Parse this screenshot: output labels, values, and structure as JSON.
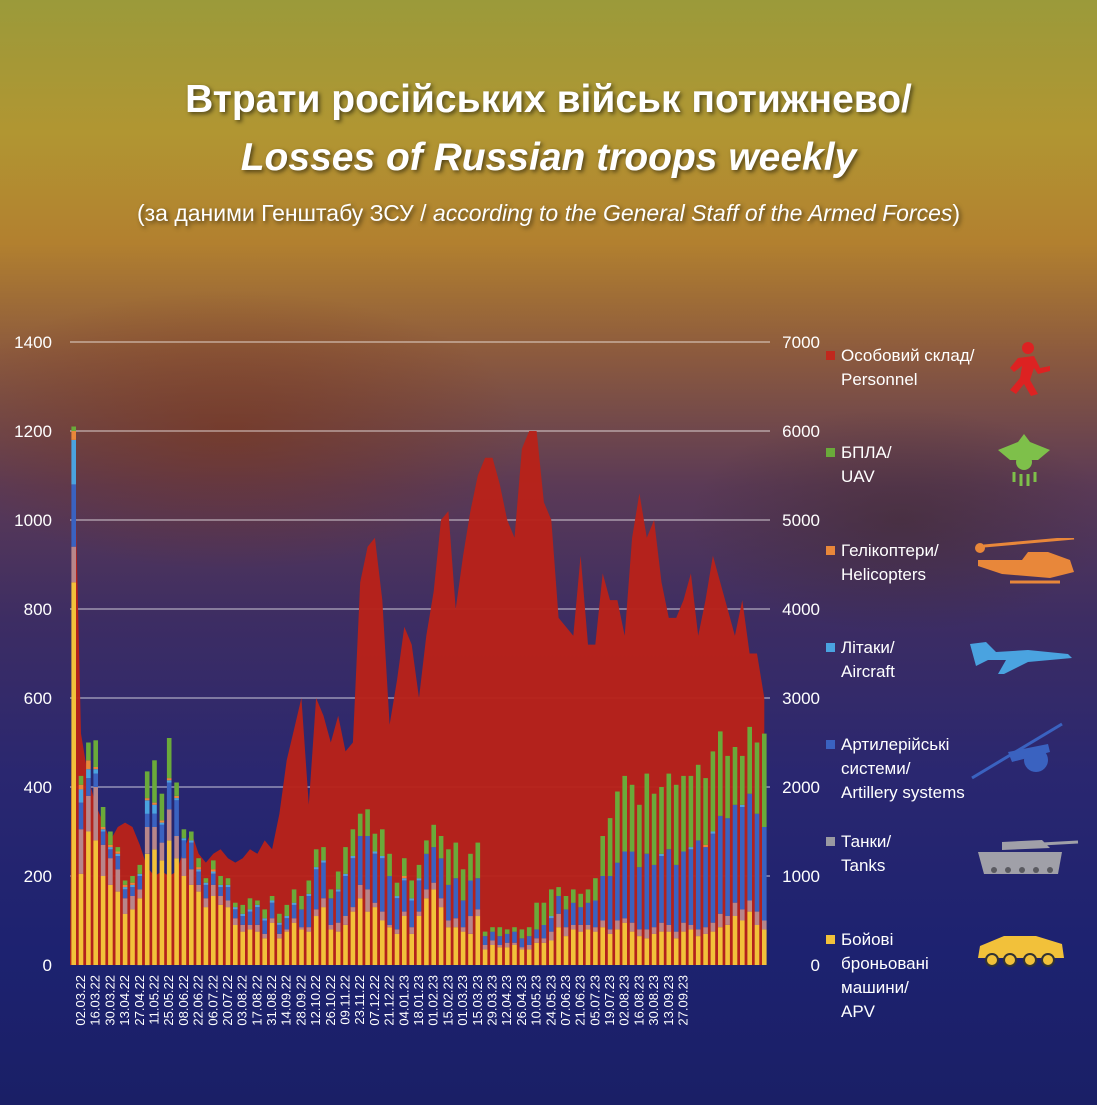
{
  "title": {
    "line1": "Втрати російських військ потижнево/",
    "line2": "Losses of Russian troops weekly",
    "line3_plain": "(за даними Генштабу ЗСУ / ",
    "line3_italic": "according to the General Staff of the Armed Forces",
    "line3_end": ")"
  },
  "legend": [
    {
      "line1": "Особовий склад/",
      "line2": "Personnel",
      "line3": "",
      "line4": "",
      "color": "#c0281d",
      "icon": "soldier-icon"
    },
    {
      "line1": "БПЛА/",
      "line2": "UAV",
      "line3": "",
      "line4": "",
      "color": "#6aaa3a",
      "icon": "uav-icon"
    },
    {
      "line1": "Гелікоптери/",
      "line2": "Helicopters",
      "line3": "",
      "line4": "",
      "color": "#e8873a",
      "icon": "helicopter-icon"
    },
    {
      "line1": "Літаки/",
      "line2": "Aircraft",
      "line3": "",
      "line4": "",
      "color": "#4aa3e0",
      "icon": "aircraft-icon"
    },
    {
      "line1": "Артилерійські",
      "line2": "системи/",
      "line3": "Artillery systems",
      "line4": "",
      "color": "#3a62c0",
      "icon": "artillery-icon"
    },
    {
      "line1": "Танки/",
      "line2": "Tanks",
      "line3": "",
      "line4": "",
      "color": "#9a9aa2",
      "icon": "tank-icon"
    },
    {
      "line1": "Бойові",
      "line2": "броньовані",
      "line3": "машини/",
      "line4": "APV",
      "color": "#f2c13a",
      "icon": "apv-icon"
    }
  ],
  "chart_data": {
    "type": "bar",
    "title": "Втрати російських військ потижнево/ Losses of Russian troops weekly",
    "left_axis": {
      "ylim": [
        0,
        1400
      ],
      "ticks": [
        0,
        200,
        400,
        600,
        800,
        1000,
        1200,
        1400
      ]
    },
    "right_axis": {
      "ylim": [
        0,
        7000
      ],
      "ticks": [
        0,
        1000,
        2000,
        3000,
        4000,
        5000,
        6000,
        7000
      ]
    },
    "grid": true,
    "legend_position": "right",
    "x_labels": [
      "02.03.22",
      "16.03.22",
      "30.03.22",
      "13.04.22",
      "27.04.22",
      "11.05.22",
      "25.05.22",
      "08.06.22",
      "22.06.22",
      "06.07.22",
      "20.07.22",
      "03.08.22",
      "17.08.22",
      "31.08.22",
      "14.09.22",
      "28.09.22",
      "12.10.22",
      "26.10.22",
      "09.11.22",
      "23.11.22",
      "07.12.22",
      "21.12.22",
      "04.01.23",
      "18.01.23",
      "01.02.23",
      "15.02.23",
      "01.03.23",
      "15.03.23",
      "29.03.23",
      "12.04.23",
      "26.04.23",
      "10.05.23",
      "24.05.23",
      "07.06.23",
      "21.06.23",
      "05.07.23",
      "19.07.23",
      "02.08.23",
      "16.08.23",
      "30.08.23",
      "13.09.23",
      "27.09.23"
    ],
    "personnel_area": {
      "name": "Особовий склад/ Personnel",
      "axis": "right",
      "values": [
        6100,
        2600,
        2100,
        1800,
        1600,
        1400,
        1550,
        1600,
        1550,
        1350,
        1100,
        1000,
        1050,
        1000,
        1050,
        1300,
        1500,
        1250,
        1150,
        1250,
        1300,
        1200,
        1150,
        1200,
        1300,
        1250,
        1400,
        1300,
        1700,
        2300,
        2650,
        3000,
        1800,
        3000,
        2800,
        2500,
        2800,
        2400,
        2500,
        4300,
        4700,
        4800,
        4100,
        2700,
        3200,
        3800,
        3600,
        3000,
        3700,
        4200,
        5000,
        5100,
        4000,
        4600,
        5100,
        5500,
        5700,
        5700,
        5400,
        5000,
        4800,
        5800,
        6000,
        6000,
        5200,
        5000,
        3900,
        3800,
        3700,
        4600,
        3600,
        3600,
        4400,
        4100,
        4100,
        3700,
        4800,
        5300,
        4800,
        5000,
        4300,
        3900,
        3900,
        4100,
        4400,
        3700,
        4100,
        4600,
        4300,
        4000,
        3700,
        4100,
        3500,
        3500,
        3000
      ]
    },
    "stacked_bars": {
      "axis": "left",
      "series": [
        {
          "name": "Бойові броньовані машини/ APV",
          "values": [
            860,
            205,
            300,
            280,
            200,
            180,
            165,
            115,
            125,
            150,
            250,
            260,
            235,
            280,
            240,
            200,
            180,
            165,
            130,
            155,
            135,
            130,
            90,
            75,
            80,
            75,
            60,
            95,
            60,
            75,
            95,
            80,
            75,
            110,
            130,
            80,
            75,
            90,
            120,
            150,
            120,
            130,
            100,
            85,
            70,
            110,
            70,
            110,
            150,
            170,
            130,
            85,
            85,
            75,
            70,
            110,
            35,
            45,
            40,
            40,
            45,
            35,
            35,
            50,
            50,
            55,
            85,
            65,
            80,
            75,
            80,
            75,
            85,
            70,
            80,
            95,
            75,
            65,
            60,
            70,
            75,
            75,
            60,
            75,
            80,
            65,
            70,
            75,
            85,
            90,
            110,
            100,
            120,
            90,
            80
          ]
        },
        {
          "name": "Танки/ Tanks",
          "values": [
            80,
            100,
            80,
            120,
            70,
            60,
            50,
            35,
            30,
            20,
            60,
            50,
            40,
            70,
            50,
            40,
            35,
            15,
            20,
            25,
            20,
            15,
            15,
            15,
            10,
            15,
            10,
            10,
            10,
            5,
            10,
            5,
            10,
            15,
            20,
            10,
            20,
            20,
            10,
            30,
            50,
            10,
            20,
            5,
            10,
            10,
            15,
            10,
            20,
            15,
            20,
            15,
            20,
            10,
            40,
            15,
            10,
            10,
            5,
            10,
            5,
            5,
            10,
            10,
            10,
            20,
            30,
            20,
            10,
            15,
            10,
            10,
            15,
            10,
            20,
            10,
            20,
            15,
            20,
            15,
            20,
            15,
            15,
            20,
            10,
            15,
            15,
            20,
            30,
            20,
            30,
            25,
            25,
            30,
            20
          ]
        },
        {
          "name": "Артилерійські системи/ Artillery",
          "values": [
            140,
            60,
            40,
            30,
            30,
            20,
            30,
            20,
            20,
            30,
            30,
            30,
            40,
            60,
            80,
            40,
            60,
            30,
            30,
            25,
            20,
            30,
            20,
            20,
            30,
            40,
            30,
            35,
            20,
            25,
            30,
            40,
            70,
            90,
            80,
            60,
            70,
            90,
            110,
            110,
            120,
            110,
            120,
            110,
            70,
            70,
            60,
            70,
            80,
            80,
            90,
            80,
            90,
            60,
            80,
            70,
            20,
            20,
            20,
            20,
            25,
            20,
            20,
            20,
            30,
            30,
            40,
            40,
            50,
            40,
            50,
            60,
            100,
            120,
            130,
            150,
            160,
            140,
            170,
            140,
            150,
            170,
            150,
            160,
            170,
            200,
            180,
            200,
            220,
            220,
            220,
            230,
            240,
            220,
            210
          ]
        },
        {
          "name": "Літаки/ Aircraft",
          "values": [
            100,
            30,
            20,
            10,
            5,
            5,
            5,
            5,
            5,
            5,
            30,
            20,
            5,
            5,
            5,
            5,
            5,
            5,
            5,
            5,
            5,
            5,
            5,
            5,
            5,
            5,
            5,
            5,
            5,
            5,
            5,
            0,
            5,
            5,
            5,
            0,
            5,
            5,
            5,
            0,
            0,
            5,
            5,
            0,
            5,
            5,
            5,
            5,
            0,
            0,
            0,
            0,
            0,
            0,
            0,
            0,
            0,
            0,
            0,
            0,
            0,
            0,
            0,
            0,
            0,
            5,
            0,
            0,
            0,
            0,
            0,
            0,
            0,
            0,
            0,
            0,
            0,
            0,
            0,
            0,
            5,
            0,
            0,
            0,
            5,
            0,
            0,
            5,
            0,
            0,
            0,
            5,
            0,
            0,
            0
          ]
        },
        {
          "name": "Гелікоптери/ Helicopters",
          "values": [
            20,
            10,
            20,
            5,
            5,
            5,
            5,
            5,
            5,
            0,
            5,
            5,
            5,
            5,
            5,
            0,
            0,
            5,
            0,
            5,
            0,
            0,
            0,
            0,
            0,
            0,
            0,
            0,
            0,
            0,
            0,
            0,
            0,
            0,
            0,
            0,
            0,
            0,
            0,
            0,
            0,
            0,
            0,
            0,
            0,
            5,
            0,
            0,
            0,
            0,
            0,
            0,
            0,
            0,
            0,
            0,
            0,
            0,
            0,
            0,
            0,
            0,
            0,
            0,
            0,
            0,
            0,
            0,
            0,
            0,
            0,
            0,
            0,
            0,
            0,
            0,
            0,
            0,
            0,
            0,
            0,
            0,
            0,
            0,
            0,
            0,
            5,
            0,
            0,
            0,
            0,
            0,
            0,
            0,
            0
          ]
        },
        {
          "name": "БПЛА/ UAV",
          "values": [
            10,
            20,
            40,
            60,
            45,
            30,
            10,
            10,
            15,
            20,
            60,
            95,
            60,
            90,
            30,
            20,
            20,
            20,
            10,
            20,
            20,
            15,
            10,
            20,
            25,
            10,
            20,
            10,
            20,
            25,
            30,
            30,
            30,
            40,
            30,
            20,
            40,
            60,
            60,
            50,
            60,
            40,
            60,
            50,
            30,
            40,
            40,
            30,
            30,
            50,
            50,
            80,
            80,
            70,
            60,
            80,
            10,
            10,
            20,
            10,
            10,
            20,
            20,
            60,
            50,
            60,
            20,
            30,
            30,
            30,
            30,
            50,
            90,
            130,
            160,
            170,
            150,
            140,
            180,
            160,
            150,
            170,
            180,
            170,
            160,
            170,
            150,
            180,
            190,
            140,
            130,
            110,
            150,
            160,
            210
          ]
        }
      ]
    }
  }
}
